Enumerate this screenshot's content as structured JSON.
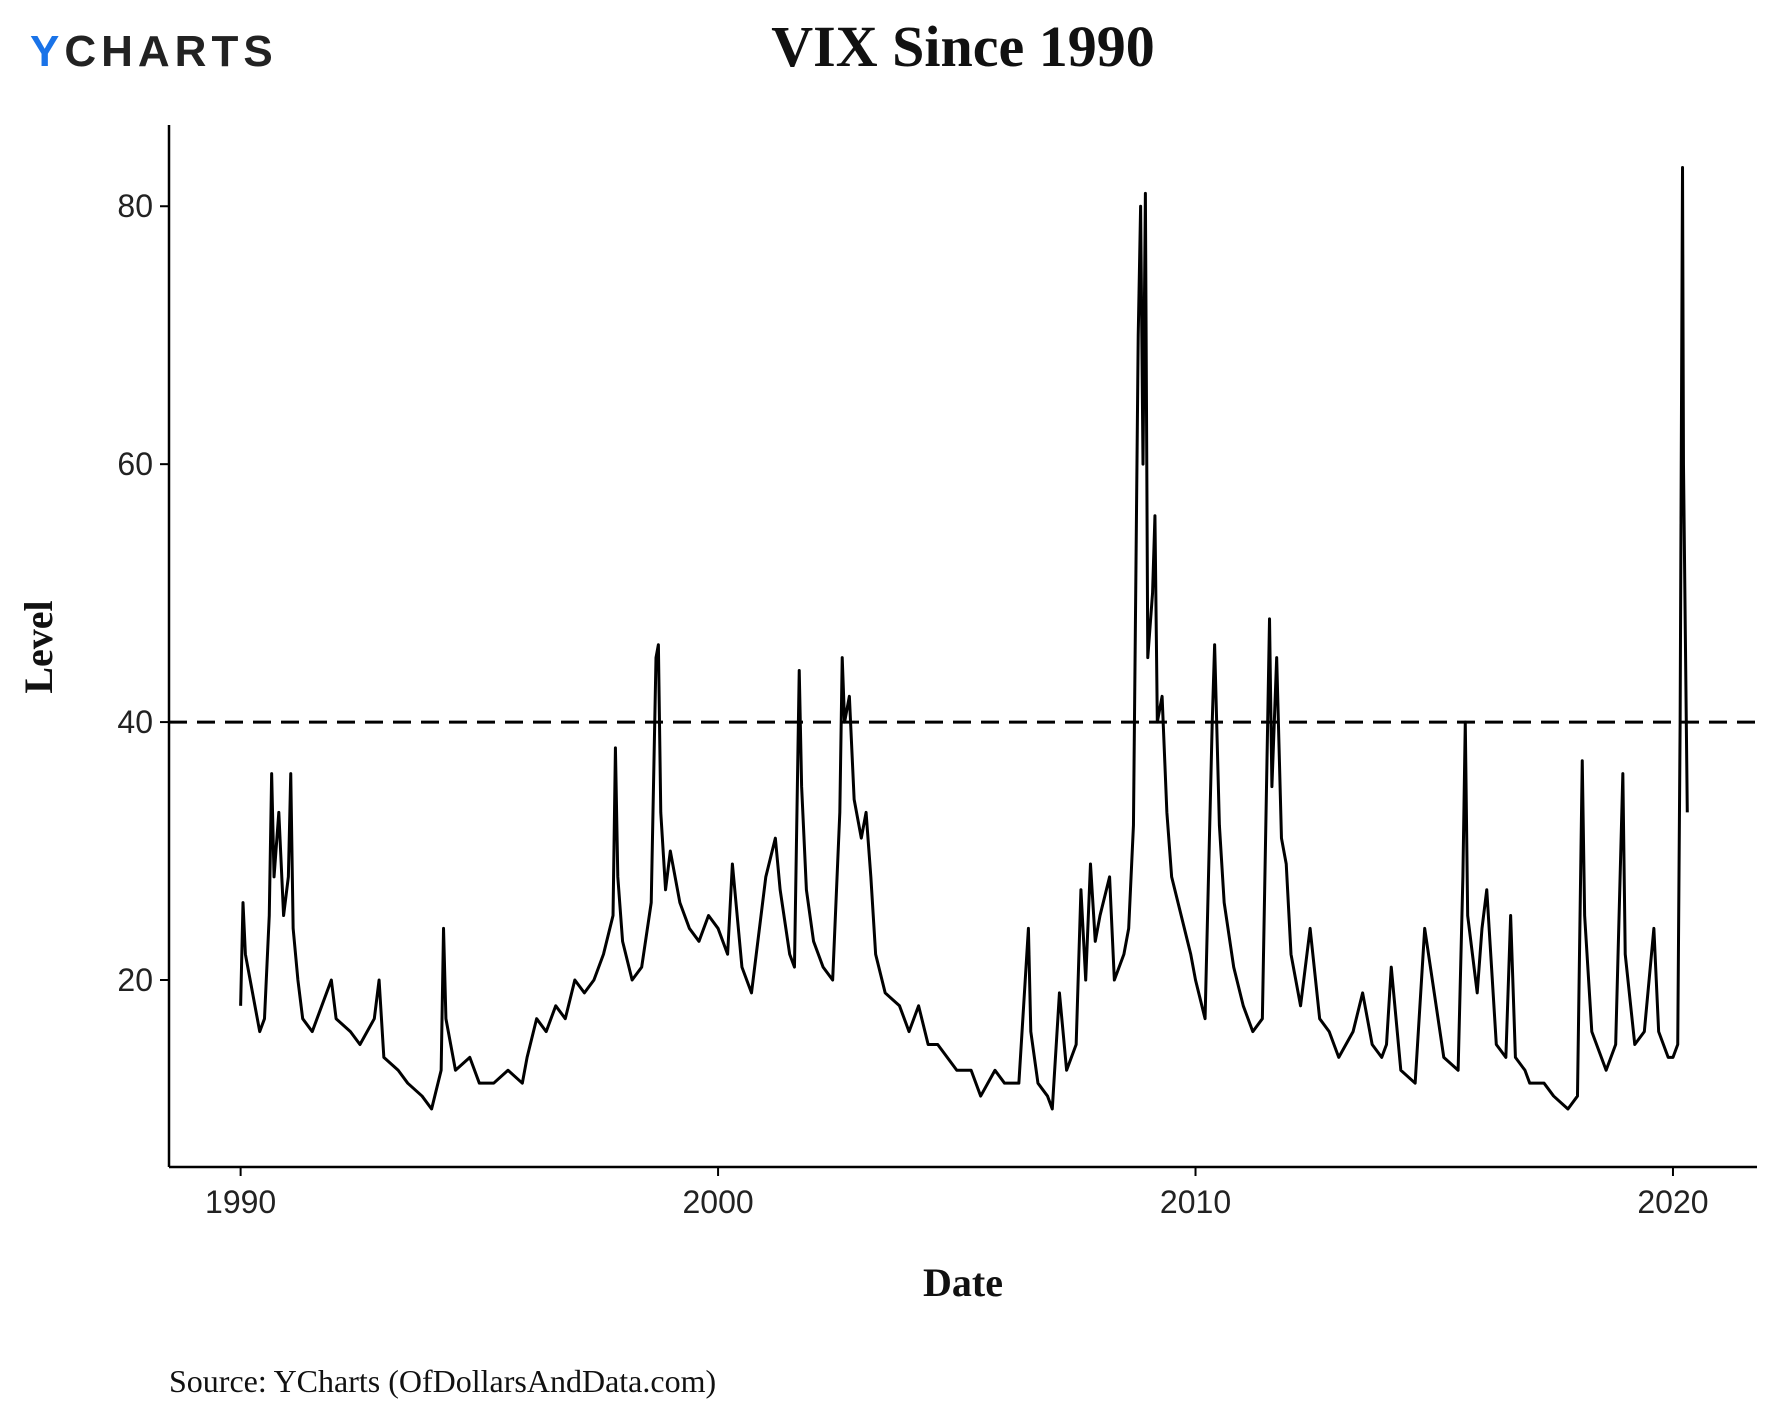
{
  "logo": [
    "Y",
    "CHARTS"
  ],
  "chart_data": {
    "type": "line",
    "title": "VIX Since 1990",
    "xlabel": "Date",
    "ylabel": "Level",
    "source": "Source: YCharts (OfDollarsAndData.com)",
    "xlim": [
      1988.5,
      2021.76
    ],
    "ylim": [
      5.5,
      86.3
    ],
    "xticks": [
      1990,
      2000,
      2010,
      2020
    ],
    "yticks": [
      20,
      40,
      60,
      80
    ],
    "hline": 40,
    "grid": false,
    "series": [
      {
        "color": "#000000",
        "x": [
          1990.0,
          1990.05,
          1990.1,
          1990.2,
          1990.3,
          1990.4,
          1990.5,
          1990.6,
          1990.65,
          1990.7,
          1990.8,
          1990.9,
          1991.0,
          1991.05,
          1991.1,
          1991.2,
          1991.3,
          1991.5,
          1991.7,
          1991.9,
          1992.0,
          1992.3,
          1992.5,
          1992.8,
          1992.9,
          1993.0,
          1993.3,
          1993.5,
          1993.8,
          1994.0,
          1994.2,
          1994.25,
          1994.3,
          1994.5,
          1994.8,
          1995.0,
          1995.3,
          1995.6,
          1995.9,
          1996.0,
          1996.2,
          1996.4,
          1996.6,
          1996.8,
          1997.0,
          1997.2,
          1997.4,
          1997.6,
          1997.8,
          1997.85,
          1997.9,
          1998.0,
          1998.2,
          1998.4,
          1998.6,
          1998.7,
          1998.75,
          1998.8,
          1998.9,
          1999.0,
          1999.2,
          1999.4,
          1999.6,
          1999.8,
          2000.0,
          2000.2,
          2000.3,
          2000.5,
          2000.7,
          2000.8,
          2001.0,
          2001.2,
          2001.3,
          2001.5,
          2001.6,
          2001.7,
          2001.75,
          2001.85,
          2002.0,
          2002.2,
          2002.4,
          2002.55,
          2002.6,
          2002.65,
          2002.75,
          2002.85,
          2003.0,
          2003.1,
          2003.2,
          2003.3,
          2003.5,
          2003.8,
          2004.0,
          2004.2,
          2004.4,
          2004.6,
          2004.8,
          2005.0,
          2005.3,
          2005.5,
          2005.8,
          2006.0,
          2006.3,
          2006.4,
          2006.5,
          2006.55,
          2006.7,
          2006.9,
          2007.0,
          2007.15,
          2007.3,
          2007.5,
          2007.6,
          2007.7,
          2007.8,
          2007.9,
          2008.0,
          2008.2,
          2008.3,
          2008.5,
          2008.6,
          2008.7,
          2008.8,
          2008.85,
          2008.9,
          2008.95,
          2009.0,
          2009.1,
          2009.15,
          2009.2,
          2009.3,
          2009.4,
          2009.5,
          2009.7,
          2009.9,
          2010.0,
          2010.2,
          2010.35,
          2010.4,
          2010.5,
          2010.6,
          2010.8,
          2011.0,
          2011.2,
          2011.4,
          2011.55,
          2011.6,
          2011.7,
          2011.8,
          2011.9,
          2012.0,
          2012.2,
          2012.4,
          2012.6,
          2012.8,
          2013.0,
          2013.3,
          2013.5,
          2013.7,
          2013.9,
          2014.0,
          2014.1,
          2014.3,
          2014.6,
          2014.8,
          2015.0,
          2015.2,
          2015.5,
          2015.6,
          2015.65,
          2015.7,
          2015.9,
          2016.0,
          2016.1,
          2016.3,
          2016.5,
          2016.6,
          2016.7,
          2016.9,
          2017.0,
          2017.3,
          2017.5,
          2017.8,
          2018.0,
          2018.1,
          2018.15,
          2018.3,
          2018.6,
          2018.8,
          2018.95,
          2019.0,
          2019.2,
          2019.4,
          2019.6,
          2019.7,
          2019.9,
          2020.0,
          2020.1,
          2020.15,
          2020.2,
          2020.22,
          2020.3
        ],
        "values": [
          18,
          26,
          22,
          20,
          18,
          16,
          17,
          25,
          36,
          28,
          33,
          25,
          28,
          36,
          24,
          20,
          17,
          16,
          18,
          20,
          17,
          16,
          15,
          17,
          20,
          14,
          13,
          12,
          11,
          10,
          13,
          24,
          17,
          13,
          14,
          12,
          12,
          13,
          12,
          14,
          17,
          16,
          18,
          17,
          20,
          19,
          20,
          22,
          25,
          38,
          28,
          23,
          20,
          21,
          26,
          45,
          46,
          33,
          27,
          30,
          26,
          24,
          23,
          25,
          24,
          22,
          29,
          21,
          19,
          22,
          28,
          31,
          27,
          22,
          21,
          44,
          35,
          27,
          23,
          21,
          20,
          33,
          45,
          40,
          42,
          34,
          31,
          33,
          28,
          22,
          19,
          18,
          16,
          18,
          15,
          15,
          14,
          13,
          13,
          11,
          13,
          12,
          12,
          18,
          24,
          16,
          12,
          11,
          10,
          19,
          13,
          15,
          27,
          20,
          29,
          23,
          25,
          28,
          20,
          22,
          24,
          32,
          70,
          80,
          60,
          81,
          45,
          50,
          56,
          40,
          42,
          33,
          28,
          25,
          22,
          20,
          17,
          40,
          46,
          32,
          26,
          21,
          18,
          16,
          17,
          48,
          35,
          45,
          31,
          29,
          22,
          18,
          24,
          17,
          16,
          14,
          16,
          19,
          15,
          14,
          15,
          21,
          13,
          12,
          24,
          19,
          14,
          13,
          28,
          40,
          25,
          19,
          24,
          27,
          15,
          14,
          25,
          14,
          13,
          12,
          12,
          11,
          10,
          11,
          37,
          25,
          16,
          13,
          15,
          36,
          22,
          15,
          16,
          24,
          16,
          14,
          14,
          15,
          40,
          83,
          60,
          33
        ]
      }
    ]
  }
}
